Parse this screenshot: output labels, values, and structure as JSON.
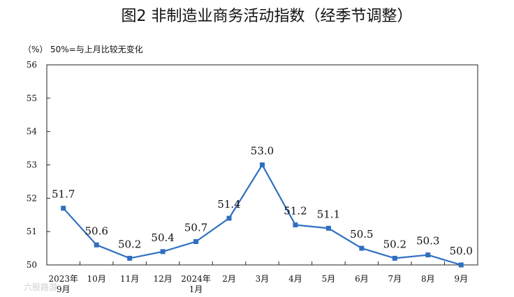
{
  "chart_data": {
    "type": "line",
    "title": "图2  非制造业商务活动指数（经季节调整）",
    "unit_label": "（%）",
    "note": "50%=与上月比较无变化",
    "categories": [
      "2023年9月",
      "10月",
      "11月",
      "12月",
      "2024年1月",
      "2月",
      "3月",
      "4月",
      "5月",
      "6月",
      "7月",
      "8月",
      "9月"
    ],
    "x_tick_labels": [
      [
        "2023年",
        "9月"
      ],
      [
        "10月"
      ],
      [
        "11月"
      ],
      [
        "12月"
      ],
      [
        "2024年",
        "1月"
      ],
      [
        "2月"
      ],
      [
        "3月"
      ],
      [
        "4月"
      ],
      [
        "5月"
      ],
      [
        "6月"
      ],
      [
        "7月"
      ],
      [
        "8月"
      ],
      [
        "9月"
      ]
    ],
    "series": [
      {
        "values": [
          51.7,
          50.6,
          50.2,
          50.4,
          50.7,
          51.4,
          53.0,
          51.2,
          51.1,
          50.5,
          50.2,
          50.3,
          50.0
        ]
      }
    ],
    "data_labels": [
      "51.7",
      "50.6",
      "50.2",
      "50.4",
      "50.7",
      "51.4",
      "53.0",
      "51.2",
      "51.1",
      "50.5",
      "50.2",
      "50.3",
      "50.0"
    ],
    "ylim": [
      50,
      56
    ],
    "yticks": [
      50,
      51,
      52,
      53,
      54,
      55,
      56
    ],
    "grid": false,
    "legend": "none",
    "line_color": "#2f6fc0"
  },
  "watermark": "六股路游"
}
